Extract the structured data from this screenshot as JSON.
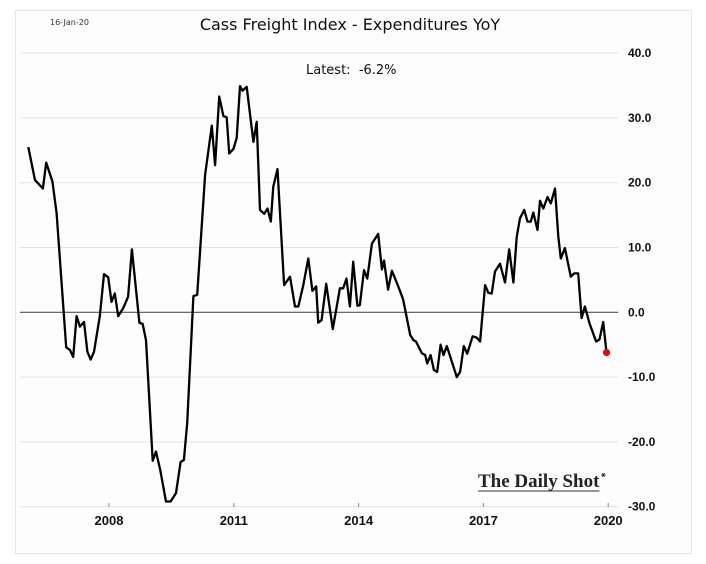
{
  "header": {
    "date": "16-Jan-20"
  },
  "watermark": "The Daily Shot",
  "chart_data": {
    "type": "line",
    "title": "Cass Freight Index - Expenditures YoY",
    "annotation": "Latest:  -6.2%",
    "xlabel": "",
    "ylabel": "",
    "xlim": [
      2005.86,
      2020.24
    ],
    "ylim": [
      -30,
      40
    ],
    "y_axis_position": "right",
    "yticks": [
      40,
      30,
      20,
      10,
      0,
      -10,
      -20,
      -30
    ],
    "ytick_labels": [
      "40.0",
      "30.0",
      "20.0",
      "10.0",
      "0.0",
      "-10.0",
      "-20.0",
      "-30.0"
    ],
    "xticks": [
      2008,
      2011,
      2014,
      2017,
      2020
    ],
    "xtick_labels": [
      "2008",
      "2011",
      "2014",
      "2017",
      "2020"
    ],
    "grid": "horizontal",
    "zero_line": true,
    "line_color": "#000000",
    "latest_marker_color": "#ff0000",
    "latest_point": {
      "x": 2019.96,
      "y": -6.2
    },
    "series": [
      {
        "x": [
          2006.06,
          2006.22,
          2006.41,
          2006.49,
          2006.64,
          2006.74,
          2006.97,
          2007.06,
          2007.14,
          2007.22,
          2007.3,
          2007.4,
          2007.48,
          2007.56,
          2007.64,
          2007.78,
          2007.88,
          2007.98,
          2008.06,
          2008.14,
          2008.22,
          2008.34,
          2008.46,
          2008.55,
          2008.73,
          2008.81,
          2008.89,
          2009.05,
          2009.13,
          2009.23,
          2009.37,
          2009.48,
          2009.61,
          2009.72,
          2009.8,
          2009.88,
          2010.03,
          2010.12,
          2010.31,
          2010.47,
          2010.55,
          2010.65,
          2010.75,
          2010.83,
          2010.89,
          2010.99,
          2011.07,
          2011.15,
          2011.21,
          2011.31,
          2011.47,
          2011.55,
          2011.63,
          2011.73,
          2011.81,
          2011.89,
          2011.95,
          2012.05,
          2012.21,
          2012.35,
          2012.47,
          2012.55,
          2012.67,
          2012.79,
          2012.89,
          2012.98,
          2013.03,
          2013.11,
          2013.22,
          2013.38,
          2013.55,
          2013.63,
          2013.71,
          2013.79,
          2013.87,
          2013.97,
          2014.03,
          2014.13,
          2014.21,
          2014.32,
          2014.47,
          2014.56,
          2014.61,
          2014.71,
          2014.8,
          2014.96,
          2015.07,
          2015.24,
          2015.32,
          2015.38,
          2015.52,
          2015.6,
          2015.65,
          2015.73,
          2015.81,
          2015.89,
          2015.97,
          2016.04,
          2016.12,
          2016.36,
          2016.44,
          2016.53,
          2016.61,
          2016.74,
          2016.84,
          2016.92,
          2017.04,
          2017.12,
          2017.2,
          2017.28,
          2017.4,
          2017.52,
          2017.62,
          2017.72,
          2017.8,
          2017.88,
          2017.98,
          2018.06,
          2018.14,
          2018.2,
          2018.3,
          2018.36,
          2018.44,
          2018.54,
          2018.62,
          2018.72,
          2018.8,
          2018.86,
          2018.96,
          2019.1,
          2019.18,
          2019.28,
          2019.36,
          2019.44,
          2019.55,
          2019.71,
          2019.79,
          2019.88,
          2019.96
        ],
        "y": [
          25.5,
          20.4,
          19.1,
          23.1,
          20.2,
          15.3,
          -5.4,
          -5.8,
          -6.9,
          -0.6,
          -2.2,
          -1.5,
          -6.1,
          -7.3,
          -6.1,
          -0.6,
          5.9,
          5.4,
          1.6,
          2.9,
          -0.6,
          0.6,
          2.4,
          9.7,
          -1.6,
          -1.8,
          -4.3,
          -22.9,
          -21.5,
          -24.3,
          -29.2,
          -29.2,
          -27.9,
          -23.1,
          -22.8,
          -17.1,
          2.5,
          2.7,
          21.2,
          28.8,
          22.7,
          33.3,
          30.3,
          30.1,
          24.5,
          25.2,
          26.9,
          34.9,
          34.2,
          34.8,
          26.3,
          29.4,
          15.8,
          15.2,
          16.0,
          14.0,
          19.4,
          22.1,
          4.2,
          5.5,
          0.9,
          0.9,
          4.2,
          8.3,
          3.3,
          4.0,
          -1.6,
          -1.2,
          4.4,
          -2.6,
          3.7,
          3.7,
          5.2,
          0.9,
          7.8,
          1.0,
          1.1,
          6.5,
          5.2,
          10.6,
          12.1,
          6.6,
          8.0,
          3.5,
          6.4,
          3.9,
          2.0,
          -3.5,
          -4.3,
          -4.5,
          -6.3,
          -6.6,
          -7.9,
          -6.6,
          -8.9,
          -9.2,
          -5.0,
          -6.6,
          -5.2,
          -10.0,
          -9.2,
          -5.2,
          -6.4,
          -3.7,
          -3.9,
          -4.5,
          4.2,
          3.0,
          2.9,
          6.3,
          7.5,
          4.6,
          9.7,
          4.6,
          11.6,
          14.5,
          15.8,
          14.0,
          14.0,
          15.4,
          12.7,
          17.2,
          16.0,
          17.8,
          16.8,
          19.1,
          11.7,
          8.3,
          9.9,
          5.5,
          6.0,
          6.0,
          -0.9,
          0.9,
          -1.7,
          -4.5,
          -4.2,
          -1.5,
          -6.2
        ]
      }
    ]
  }
}
